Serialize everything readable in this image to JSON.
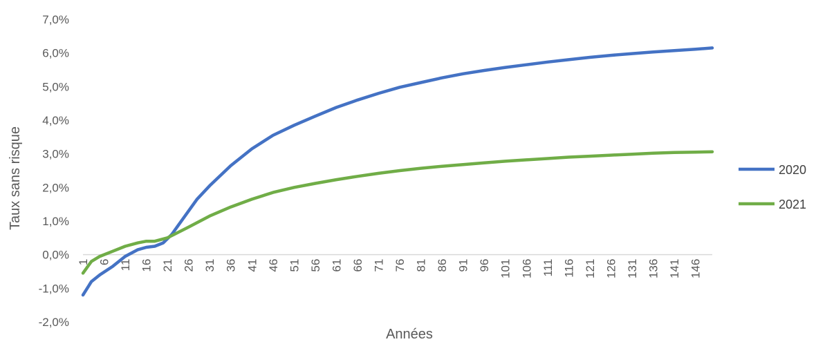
{
  "chart_data": {
    "type": "line",
    "xlabel": "Années",
    "ylabel": "Taux sans risque",
    "x_range": [
      1,
      150
    ],
    "ylim": [
      -2.0,
      7.0
    ],
    "y_ticks": [
      "-2,0%",
      "-1,0%",
      "0,0%",
      "1,0%",
      "2,0%",
      "3,0%",
      "4,0%",
      "5,0%",
      "6,0%",
      "7,0%"
    ],
    "x_ticks": [
      "1",
      "6",
      "11",
      "16",
      "21",
      "26",
      "31",
      "36",
      "41",
      "46",
      "51",
      "56",
      "61",
      "66",
      "71",
      "76",
      "81",
      "86",
      "91",
      "96",
      "101",
      "106",
      "111",
      "116",
      "121",
      "126",
      "131",
      "136",
      "141",
      "146"
    ],
    "legend_position": "right",
    "grid": false,
    "series": [
      {
        "name": "2020",
        "color": "#4472C4",
        "points": [
          [
            1,
            -1.2
          ],
          [
            3,
            -0.8
          ],
          [
            5,
            -0.6
          ],
          [
            8,
            -0.35
          ],
          [
            11,
            -0.05
          ],
          [
            14,
            0.15
          ],
          [
            16,
            0.22
          ],
          [
            18,
            0.25
          ],
          [
            20,
            0.35
          ],
          [
            22,
            0.6
          ],
          [
            24,
            0.95
          ],
          [
            26,
            1.3
          ],
          [
            28,
            1.65
          ],
          [
            31,
            2.05
          ],
          [
            36,
            2.65
          ],
          [
            41,
            3.15
          ],
          [
            46,
            3.55
          ],
          [
            51,
            3.85
          ],
          [
            56,
            4.12
          ],
          [
            61,
            4.38
          ],
          [
            66,
            4.6
          ],
          [
            71,
            4.8
          ],
          [
            76,
            4.98
          ],
          [
            81,
            5.12
          ],
          [
            86,
            5.26
          ],
          [
            91,
            5.38
          ],
          [
            96,
            5.48
          ],
          [
            101,
            5.57
          ],
          [
            106,
            5.65
          ],
          [
            111,
            5.73
          ],
          [
            116,
            5.8
          ],
          [
            121,
            5.87
          ],
          [
            126,
            5.93
          ],
          [
            131,
            5.98
          ],
          [
            136,
            6.03
          ],
          [
            141,
            6.07
          ],
          [
            146,
            6.11
          ],
          [
            150,
            6.15
          ]
        ]
      },
      {
        "name": "2021",
        "color": "#70AD47",
        "points": [
          [
            1,
            -0.55
          ],
          [
            3,
            -0.2
          ],
          [
            5,
            -0.05
          ],
          [
            8,
            0.1
          ],
          [
            11,
            0.25
          ],
          [
            14,
            0.35
          ],
          [
            16,
            0.4
          ],
          [
            18,
            0.4
          ],
          [
            21,
            0.5
          ],
          [
            26,
            0.82
          ],
          [
            31,
            1.15
          ],
          [
            36,
            1.42
          ],
          [
            41,
            1.65
          ],
          [
            46,
            1.85
          ],
          [
            51,
            2.0
          ],
          [
            56,
            2.12
          ],
          [
            61,
            2.23
          ],
          [
            66,
            2.33
          ],
          [
            71,
            2.42
          ],
          [
            76,
            2.5
          ],
          [
            81,
            2.57
          ],
          [
            86,
            2.63
          ],
          [
            91,
            2.68
          ],
          [
            96,
            2.73
          ],
          [
            101,
            2.78
          ],
          [
            106,
            2.82
          ],
          [
            111,
            2.86
          ],
          [
            116,
            2.9
          ],
          [
            121,
            2.93
          ],
          [
            126,
            2.96
          ],
          [
            131,
            2.99
          ],
          [
            136,
            3.02
          ],
          [
            141,
            3.04
          ],
          [
            146,
            3.05
          ],
          [
            150,
            3.06
          ]
        ]
      }
    ]
  }
}
